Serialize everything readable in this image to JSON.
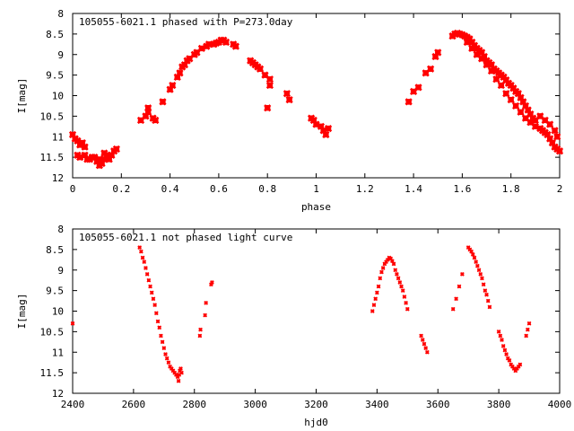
{
  "chart_data": [
    {
      "type": "scatter",
      "title": "105055-6021.1 phased with P=273.0day",
      "xlabel": "phase",
      "ylabel": "I[mag]",
      "xlim": [
        0,
        2
      ],
      "ylim": [
        8,
        12
      ],
      "y_inverted": true,
      "xticks": [
        0,
        0.2,
        0.4,
        0.6,
        0.8,
        1,
        1.2,
        1.4,
        1.6,
        1.8,
        2
      ],
      "xtick_labels": [
        "0",
        "0.2",
        "0.4",
        "0.6",
        "0.8",
        "1",
        "1.2",
        "1.4",
        "1.6",
        "1.8",
        "2"
      ],
      "yticks": [
        8,
        8.5,
        9,
        9.5,
        10,
        10.5,
        11,
        11.5,
        12
      ],
      "ytick_labels": [
        "8",
        "8.5",
        "9",
        "9.5",
        "10",
        "10.5",
        "11",
        "11.5",
        "12"
      ],
      "grid": false,
      "marker_color": "#ff0000",
      "marker_size": "large",
      "points": [
        [
          0.0,
          10.95
        ],
        [
          0.01,
          11.05
        ],
        [
          0.02,
          11.45
        ],
        [
          0.02,
          11.1
        ],
        [
          0.03,
          11.2
        ],
        [
          0.03,
          11.5
        ],
        [
          0.04,
          11.15
        ],
        [
          0.05,
          11.45
        ],
        [
          0.05,
          11.25
        ],
        [
          0.06,
          11.55
        ],
        [
          0.07,
          11.55
        ],
        [
          0.08,
          11.5
        ],
        [
          0.09,
          11.5
        ],
        [
          0.1,
          11.6
        ],
        [
          0.11,
          11.55
        ],
        [
          0.11,
          11.7
        ],
        [
          0.12,
          11.65
        ],
        [
          0.13,
          11.4
        ],
        [
          0.13,
          11.55
        ],
        [
          0.14,
          11.45
        ],
        [
          0.15,
          11.55
        ],
        [
          0.16,
          11.45
        ],
        [
          0.17,
          11.35
        ],
        [
          0.18,
          11.3
        ],
        [
          0.28,
          10.6
        ],
        [
          0.3,
          10.5
        ],
        [
          0.31,
          10.4
        ],
        [
          0.31,
          10.3
        ],
        [
          0.33,
          10.55
        ],
        [
          0.34,
          10.6
        ],
        [
          0.37,
          10.15
        ],
        [
          0.4,
          9.85
        ],
        [
          0.41,
          9.75
        ],
        [
          0.43,
          9.55
        ],
        [
          0.44,
          9.45
        ],
        [
          0.45,
          9.3
        ],
        [
          0.46,
          9.25
        ],
        [
          0.47,
          9.15
        ],
        [
          0.48,
          9.1
        ],
        [
          0.5,
          9.0
        ],
        [
          0.51,
          8.95
        ],
        [
          0.53,
          8.85
        ],
        [
          0.55,
          8.8
        ],
        [
          0.56,
          8.75
        ],
        [
          0.58,
          8.75
        ],
        [
          0.59,
          8.72
        ],
        [
          0.6,
          8.7
        ],
        [
          0.61,
          8.65
        ],
        [
          0.62,
          8.65
        ],
        [
          0.63,
          8.7
        ],
        [
          0.66,
          8.75
        ],
        [
          0.67,
          8.8
        ],
        [
          0.73,
          9.15
        ],
        [
          0.74,
          9.2
        ],
        [
          0.75,
          9.25
        ],
        [
          0.76,
          9.3
        ],
        [
          0.77,
          9.35
        ],
        [
          0.79,
          9.5
        ],
        [
          0.81,
          9.6
        ],
        [
          0.81,
          9.75
        ],
        [
          0.8,
          10.3
        ],
        [
          0.88,
          9.95
        ],
        [
          0.89,
          10.1
        ],
        [
          0.98,
          10.55
        ],
        [
          0.99,
          10.6
        ],
        [
          1.0,
          10.7
        ],
        [
          1.02,
          10.75
        ],
        [
          1.03,
          10.85
        ],
        [
          1.04,
          10.95
        ],
        [
          1.05,
          10.8
        ],
        [
          1.38,
          10.15
        ],
        [
          1.4,
          9.9
        ],
        [
          1.42,
          9.8
        ],
        [
          1.45,
          9.45
        ],
        [
          1.47,
          9.35
        ],
        [
          1.49,
          9.05
        ],
        [
          1.5,
          8.95
        ],
        [
          1.56,
          8.55
        ],
        [
          1.57,
          8.5
        ],
        [
          1.58,
          8.48
        ],
        [
          1.59,
          8.5
        ],
        [
          1.6,
          8.52
        ],
        [
          1.61,
          8.55
        ],
        [
          1.62,
          8.58
        ],
        [
          1.63,
          8.62
        ],
        [
          1.64,
          8.7
        ],
        [
          1.65,
          8.78
        ],
        [
          1.66,
          8.85
        ],
        [
          1.67,
          8.9
        ],
        [
          1.68,
          8.95
        ],
        [
          1.69,
          9.05
        ],
        [
          1.7,
          9.15
        ],
        [
          1.71,
          9.2
        ],
        [
          1.72,
          9.25
        ],
        [
          1.73,
          9.35
        ],
        [
          1.74,
          9.4
        ],
        [
          1.75,
          9.45
        ],
        [
          1.76,
          9.5
        ],
        [
          1.77,
          9.55
        ],
        [
          1.78,
          9.62
        ],
        [
          1.79,
          9.7
        ],
        [
          1.8,
          9.75
        ],
        [
          1.81,
          9.82
        ],
        [
          1.82,
          9.9
        ],
        [
          1.83,
          9.95
        ],
        [
          1.84,
          10.05
        ],
        [
          1.85,
          10.15
        ],
        [
          1.86,
          10.25
        ],
        [
          1.87,
          10.35
        ],
        [
          1.88,
          10.45
        ],
        [
          1.89,
          10.55
        ],
        [
          1.9,
          10.6
        ],
        [
          1.62,
          8.7
        ],
        [
          1.64,
          8.85
        ],
        [
          1.66,
          9.0
        ],
        [
          1.68,
          9.1
        ],
        [
          1.7,
          9.25
        ],
        [
          1.72,
          9.4
        ],
        [
          1.74,
          9.6
        ],
        [
          1.76,
          9.75
        ],
        [
          1.78,
          9.95
        ],
        [
          1.8,
          10.1
        ],
        [
          1.82,
          10.25
        ],
        [
          1.84,
          10.4
        ],
        [
          1.86,
          10.55
        ],
        [
          1.88,
          10.65
        ],
        [
          1.9,
          10.75
        ],
        [
          1.92,
          10.8
        ],
        [
          1.93,
          10.85
        ],
        [
          1.94,
          10.9
        ],
        [
          1.95,
          10.95
        ],
        [
          1.96,
          11.05
        ],
        [
          1.97,
          11.15
        ],
        [
          1.98,
          11.25
        ],
        [
          1.99,
          11.3
        ],
        [
          2.0,
          11.35
        ],
        [
          1.92,
          10.5
        ],
        [
          1.94,
          10.6
        ],
        [
          1.96,
          10.7
        ],
        [
          1.98,
          10.85
        ],
        [
          1.99,
          11.0
        ]
      ]
    },
    {
      "type": "scatter",
      "title": "105055-6021.1 not phased light curve",
      "xlabel": "hjd0",
      "ylabel": "I[mag]",
      "xlim": [
        2400,
        4000
      ],
      "ylim": [
        8,
        12
      ],
      "y_inverted": true,
      "xticks": [
        2400,
        2600,
        2800,
        3000,
        3200,
        3400,
        3600,
        3800,
        4000
      ],
      "xtick_labels": [
        "2400",
        "2600",
        "2800",
        "3000",
        "3200",
        "3400",
        "3600",
        "3800",
        "4000"
      ],
      "yticks": [
        8,
        8.5,
        9,
        9.5,
        10,
        10.5,
        11,
        11.5,
        12
      ],
      "ytick_labels": [
        "8",
        "8.5",
        "9",
        "9.5",
        "10",
        "10.5",
        "11",
        "11.5",
        "12"
      ],
      "grid": false,
      "marker_color": "#ff0000",
      "marker_size": "small",
      "points": [
        [
          2400,
          10.3
        ],
        [
          2620,
          8.45
        ],
        [
          2625,
          8.55
        ],
        [
          2630,
          8.7
        ],
        [
          2635,
          8.8
        ],
        [
          2640,
          8.95
        ],
        [
          2645,
          9.1
        ],
        [
          2650,
          9.25
        ],
        [
          2655,
          9.4
        ],
        [
          2660,
          9.55
        ],
        [
          2665,
          9.7
        ],
        [
          2670,
          9.85
        ],
        [
          2675,
          10.05
        ],
        [
          2680,
          10.25
        ],
        [
          2685,
          10.4
        ],
        [
          2690,
          10.6
        ],
        [
          2695,
          10.75
        ],
        [
          2700,
          10.9
        ],
        [
          2705,
          11.05
        ],
        [
          2710,
          11.15
        ],
        [
          2715,
          11.25
        ],
        [
          2720,
          11.35
        ],
        [
          2725,
          11.4
        ],
        [
          2730,
          11.45
        ],
        [
          2735,
          11.5
        ],
        [
          2740,
          11.55
        ],
        [
          2745,
          11.6
        ],
        [
          2748,
          11.7
        ],
        [
          2750,
          11.55
        ],
        [
          2752,
          11.45
        ],
        [
          2755,
          11.4
        ],
        [
          2758,
          11.5
        ],
        [
          2818,
          10.6
        ],
        [
          2820,
          10.45
        ],
        [
          2835,
          10.1
        ],
        [
          2838,
          9.8
        ],
        [
          2855,
          9.35
        ],
        [
          2858,
          9.3
        ],
        [
          3385,
          10.0
        ],
        [
          3390,
          9.85
        ],
        [
          3395,
          9.7
        ],
        [
          3400,
          9.55
        ],
        [
          3405,
          9.4
        ],
        [
          3410,
          9.2
        ],
        [
          3415,
          9.05
        ],
        [
          3420,
          8.95
        ],
        [
          3425,
          8.85
        ],
        [
          3430,
          8.8
        ],
        [
          3435,
          8.75
        ],
        [
          3440,
          8.7
        ],
        [
          3445,
          8.72
        ],
        [
          3450,
          8.78
        ],
        [
          3455,
          8.85
        ],
        [
          3460,
          9.0
        ],
        [
          3465,
          9.1
        ],
        [
          3470,
          9.2
        ],
        [
          3475,
          9.3
        ],
        [
          3480,
          9.4
        ],
        [
          3485,
          9.5
        ],
        [
          3490,
          9.65
        ],
        [
          3495,
          9.8
        ],
        [
          3500,
          9.95
        ],
        [
          3545,
          10.6
        ],
        [
          3550,
          10.7
        ],
        [
          3555,
          10.8
        ],
        [
          3560,
          10.9
        ],
        [
          3565,
          11.0
        ],
        [
          3650,
          9.95
        ],
        [
          3660,
          9.7
        ],
        [
          3670,
          9.4
        ],
        [
          3680,
          9.1
        ],
        [
          3700,
          8.45
        ],
        [
          3705,
          8.5
        ],
        [
          3710,
          8.55
        ],
        [
          3715,
          8.62
        ],
        [
          3720,
          8.7
        ],
        [
          3725,
          8.8
        ],
        [
          3730,
          8.9
        ],
        [
          3735,
          9.0
        ],
        [
          3740,
          9.1
        ],
        [
          3745,
          9.2
        ],
        [
          3750,
          9.35
        ],
        [
          3755,
          9.5
        ],
        [
          3760,
          9.6
        ],
        [
          3765,
          9.75
        ],
        [
          3770,
          9.9
        ],
        [
          3800,
          10.5
        ],
        [
          3805,
          10.6
        ],
        [
          3810,
          10.7
        ],
        [
          3815,
          10.85
        ],
        [
          3820,
          10.95
        ],
        [
          3825,
          11.05
        ],
        [
          3830,
          11.15
        ],
        [
          3835,
          11.2
        ],
        [
          3840,
          11.3
        ],
        [
          3845,
          11.35
        ],
        [
          3850,
          11.4
        ],
        [
          3855,
          11.45
        ],
        [
          3860,
          11.4
        ],
        [
          3865,
          11.35
        ],
        [
          3870,
          11.3
        ],
        [
          3890,
          10.6
        ],
        [
          3895,
          10.45
        ],
        [
          3900,
          10.3
        ]
      ]
    }
  ]
}
